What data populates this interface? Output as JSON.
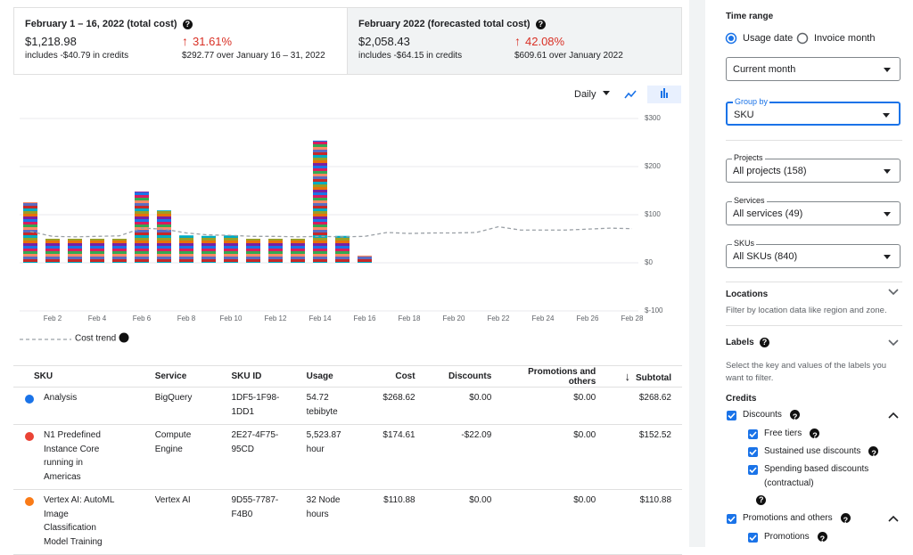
{
  "summary": [
    {
      "title": "February 1 – 16, 2022 (total cost)",
      "amount": "$1,218.98",
      "change": "31.61%",
      "credits": "includes -$40.79 in credits",
      "comparison": "$292.77 over January 16 – 31, 2022"
    },
    {
      "title": "February 2022 (forecasted total cost)",
      "amount": "$2,058.43",
      "change": "42.08%",
      "credits": "includes -$64.15 in credits",
      "comparison": "$609.61 over January 2022"
    }
  ],
  "controls": {
    "interval": "Daily"
  },
  "chart_data": {
    "type": "bar",
    "categories": [
      null,
      "Feb 2",
      null,
      "Feb 4",
      null,
      "Feb 6",
      null,
      "Feb 8",
      null,
      "Feb 10",
      null,
      "Feb 12",
      null,
      "Feb 14",
      null,
      "Feb 16",
      null,
      "Feb 18",
      null,
      "Feb 20",
      null,
      "Feb 22",
      null,
      "Feb 24",
      null,
      "Feb 26",
      null,
      "Feb 28"
    ],
    "series": [
      {
        "values": [
          126,
          50,
          50,
          50,
          50,
          148,
          109,
          57,
          56,
          57,
          50,
          50,
          50,
          254,
          56,
          15,
          null,
          null,
          null,
          null,
          null,
          null,
          null,
          null,
          null,
          null,
          null,
          null
        ]
      },
      {
        "name": "Cost trend",
        "type": "line",
        "color": "#9aa0a6",
        "values": [
          65,
          55,
          54,
          55,
          56,
          72,
          70,
          62,
          58,
          57,
          55,
          55,
          54,
          55,
          54,
          55,
          63,
          61,
          62,
          62,
          63,
          75,
          68,
          68,
          68,
          70,
          72,
          71
        ]
      }
    ],
    "ylim": [
      -100,
      300
    ],
    "yticks": [
      {
        "value": -100,
        "label": "$-100"
      },
      {
        "value": 0,
        "label": "$0"
      },
      {
        "value": 100,
        "label": "$100"
      },
      {
        "value": 200,
        "label": "$200"
      },
      {
        "value": 300,
        "label": "$300"
      }
    ],
    "grid": true
  },
  "table": {
    "columns": [
      "SKU",
      "Service",
      "SKU ID",
      "Usage",
      "Cost",
      "Discounts",
      "Promotions and others",
      "Subtotal"
    ],
    "rows": [
      {
        "color": "#1a73e8",
        "cells": [
          "Analysis",
          "BigQuery",
          "1DF5-1F98-1DD1",
          "54.72 tebibyte",
          "$268.62",
          "$0.00",
          "$0.00",
          "$268.62"
        ]
      },
      {
        "color": "#ea4335",
        "cells": [
          "N1 Predefined Instance Core running in Americas",
          "Compute Engine",
          "2E27-4F75-95CD",
          "5,523.87 hour",
          "$174.61",
          "-$22.09",
          "$0.00",
          "$152.52"
        ]
      },
      {
        "color": "#fa7b17",
        "cells": [
          "Vertex AI: AutoML Image Classification Model Training",
          "Vertex AI",
          "9D55-7787-F4B0",
          "32 Node hours",
          "$110.88",
          "$0.00",
          "$0.00",
          "$110.88"
        ]
      }
    ]
  },
  "filters": {
    "time_range": "Time range",
    "usage_date": "Usage date",
    "invoice_month": "Invoice month",
    "period": "Current month",
    "group_by": {
      "label": "Group by",
      "value": "SKU"
    },
    "projects": {
      "label": "Projects",
      "value": "All projects (158)"
    },
    "services": {
      "label": "Services",
      "value": "All services (49)"
    },
    "skus": {
      "label": "SKUs",
      "value": "All SKUs (840)"
    },
    "locations": {
      "title": "Locations",
      "description": "Filter by location data like region and zone."
    },
    "labels": {
      "title": "Labels",
      "description": "Select the key and values of the labels you want to filter."
    },
    "credits": {
      "title": "Credits",
      "discounts": "Discounts",
      "free_tiers": "Free tiers",
      "sustained": "Sustained use discounts",
      "spending": "Spending based discounts (contractual)",
      "promotions_others": "Promotions and others",
      "promotions": "Promotions"
    }
  }
}
